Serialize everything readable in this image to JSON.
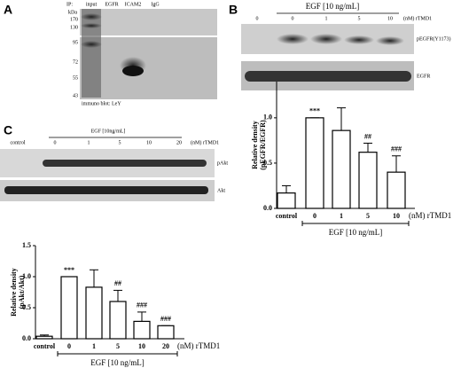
{
  "panel_a": {
    "label": "A",
    "ip": "IP:",
    "lanes": [
      "input",
      "EGFR",
      "ICAM2",
      "IgG"
    ],
    "kda": "kDa",
    "markers": [
      "170",
      "130",
      "95",
      "72",
      "55",
      "43"
    ],
    "blot": "immuno blot: LeY"
  },
  "panel_b": {
    "label": "B",
    "treatment": "EGF [10 ng/mL]",
    "lanes": [
      "0",
      "0",
      "1",
      "5",
      "10"
    ],
    "unit": "(nM) rTMD1",
    "bands": [
      "pEGFR(Y1173)",
      "EGFR"
    ]
  },
  "panel_c": {
    "label": "C",
    "treatment": "EGF [10ng/mL]",
    "lanes": [
      "control",
      "0",
      "1",
      "5",
      "10",
      "20"
    ],
    "unit": "(nM) rTMD1",
    "bands": [
      "pAkt",
      "Akt"
    ]
  },
  "chart_data": [
    {
      "type": "bar",
      "ylabel": [
        "Relative density",
        "(pEGFR/EGFR)"
      ],
      "categories": [
        "control",
        "0",
        "1",
        "5",
        "10"
      ],
      "values": [
        0.17,
        1.0,
        0.86,
        0.62,
        0.4
      ],
      "errors": [
        0.08,
        0,
        0.25,
        0.1,
        0.18
      ],
      "annotations": [
        null,
        "***",
        null,
        "##",
        "###"
      ],
      "unit_label": "(nM) rTMD1",
      "group_label": "EGF [10 ng/mL]",
      "color": "#ffffff",
      "ylim": [
        0,
        1.4
      ],
      "yticks": [
        {
          "value": 0,
          "label": "0.0"
        },
        {
          "value": 0.5,
          "label": "0.5"
        },
        {
          "value": 1,
          "label": "1.0"
        }
      ]
    },
    {
      "type": "bar",
      "ylabel": [
        "Relative density",
        "(pAkt/Akt)"
      ],
      "categories": [
        "control",
        "0",
        "1",
        "5",
        "10",
        "20"
      ],
      "values": [
        0.04,
        1.0,
        0.83,
        0.6,
        0.28,
        0.21
      ],
      "errors": [
        0.02,
        0,
        0.28,
        0.18,
        0.15,
        0
      ],
      "annotations": [
        null,
        "***",
        null,
        "##",
        "###",
        "###"
      ],
      "unit_label": "(nM) rTMD1",
      "group_label": "EGF [10 ng/mL]",
      "color": "#ffffff",
      "ylim": [
        0,
        1.5
      ],
      "yticks": [
        {
          "value": 0,
          "label": "0.0"
        },
        {
          "value": 0.5,
          "label": "0.5"
        },
        {
          "value": 1,
          "label": "1.0"
        },
        {
          "value": 1.5,
          "label": "1.5"
        }
      ]
    }
  ]
}
